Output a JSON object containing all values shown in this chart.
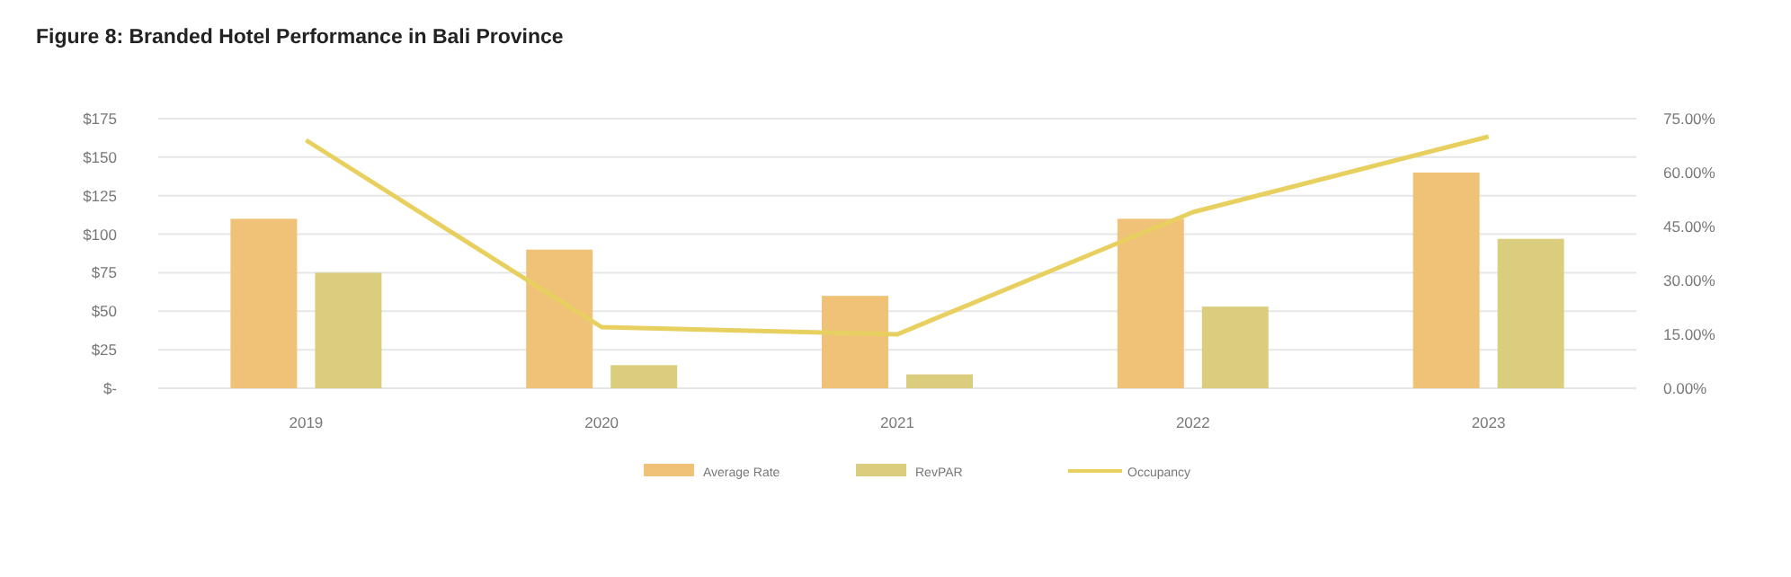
{
  "chart_data": {
    "type": "bar",
    "title": "Figure 8: Branded Hotel Performance in Bali Province",
    "categories": [
      "2019",
      "2020",
      "2021",
      "2022",
      "2023"
    ],
    "series": [
      {
        "name": "Average Rate",
        "color": "#f0c278",
        "values": [
          110,
          90,
          60,
          110,
          140
        ]
      },
      {
        "name": "RevPAR",
        "color": "#dbcd7e",
        "values": [
          75,
          15,
          9,
          53,
          97
        ]
      },
      {
        "name": "Occupancy",
        "type": "line",
        "axis": "y2",
        "color": "#e8d060",
        "values": [
          69,
          17,
          15,
          49,
          70
        ]
      }
    ],
    "ylim": [
      0,
      175
    ],
    "yticks": [
      {
        "value": 0,
        "label": "$-"
      },
      {
        "value": 25,
        "label": "$25"
      },
      {
        "value": 50,
        "label": "$50"
      },
      {
        "value": 75,
        "label": "$75"
      },
      {
        "value": 100,
        "label": "$100"
      },
      {
        "value": 125,
        "label": "$125"
      },
      {
        "value": 150,
        "label": "$150"
      },
      {
        "value": 175,
        "label": "$175"
      }
    ],
    "y2lim": [
      0,
      75
    ],
    "y2ticks": [
      {
        "value": 0,
        "label": "0.00%"
      },
      {
        "value": 15,
        "label": "15.00%"
      },
      {
        "value": 30,
        "label": "30.00%"
      },
      {
        "value": 45,
        "label": "45.00%"
      },
      {
        "value": 60,
        "label": "60.00%"
      },
      {
        "value": 75,
        "label": "75.00%"
      }
    ],
    "grid": "y",
    "legend": "bottom",
    "marker": "none",
    "line_style": "solid"
  }
}
